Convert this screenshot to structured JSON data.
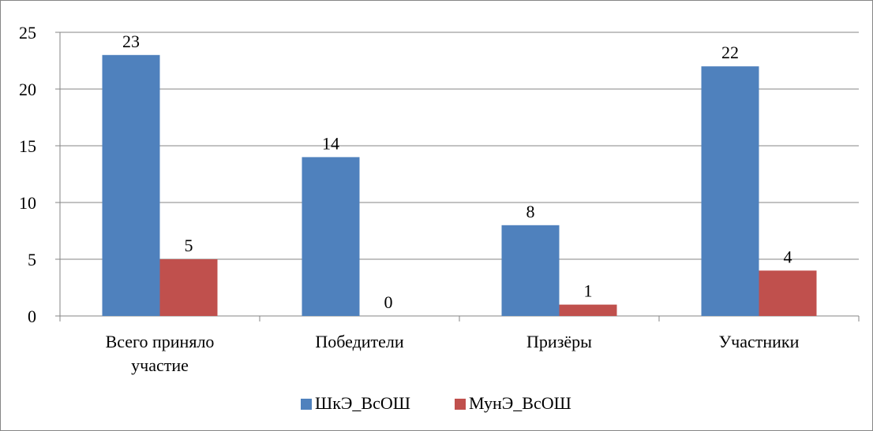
{
  "chart_data": {
    "type": "bar",
    "categories": [
      [
        "Всего приняло",
        "участие"
      ],
      [
        "Победители"
      ],
      [
        "Призёры"
      ],
      [
        "Участники"
      ]
    ],
    "series": [
      {
        "name": "ШкЭ_ВсОШ",
        "values": [
          23,
          14,
          8,
          22
        ],
        "color": "#4f81bd"
      },
      {
        "name": "МунЭ_ВсОШ",
        "values": [
          5,
          0,
          1,
          4
        ],
        "color": "#c0504d"
      }
    ],
    "ylim": [
      0,
      25
    ],
    "yticks": [
      0,
      5,
      10,
      15,
      20,
      25
    ],
    "grid": true,
    "legend": "bottom",
    "gridline_color": "#868686"
  }
}
